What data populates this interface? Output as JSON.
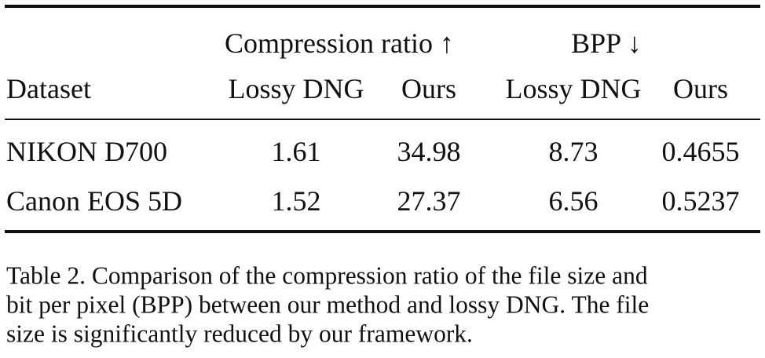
{
  "table": {
    "groups": [
      "Compression ratio ↑",
      "BPP ↓"
    ],
    "columns": [
      "Dataset",
      "Lossy DNG",
      "Ours",
      "Lossy DNG",
      "Ours"
    ],
    "rows": [
      [
        "NIKON D700",
        1.61,
        34.98,
        8.73,
        0.4655
      ],
      [
        "Canon EOS 5D",
        1.52,
        27.37,
        6.56,
        0.5237
      ]
    ]
  },
  "caption": [
    "Table 2. Comparison of the compression ratio of the file size and",
    "bit per pixel (BPP) between our method and lossy DNG. The file",
    "size is significantly reduced by our framework."
  ]
}
